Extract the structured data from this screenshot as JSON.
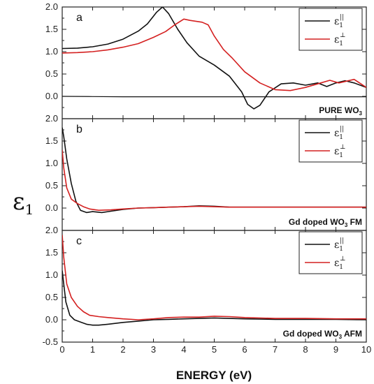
{
  "figure": {
    "ylabel": "ε",
    "ylabel_sub": "1",
    "xlabel": "ENERGY (eV)"
  },
  "chart_data": [
    {
      "type": "line",
      "panel": "a",
      "note": "PURE WO",
      "note_sub": "3",
      "xlim": [
        0,
        10
      ],
      "ylim": [
        -0.5,
        2.0
      ],
      "xticks": [
        "0",
        "1",
        "2",
        "3",
        "4",
        "5",
        "6",
        "7",
        "8",
        "9",
        "10"
      ],
      "yticks": [
        {
          "v": 0.0,
          "label": "0.0"
        },
        {
          "v": 0.5,
          "label": "0.5"
        },
        {
          "v": 1.0,
          "label": "1.0"
        },
        {
          "v": 1.5,
          "label": "1.5"
        },
        {
          "v": 2.0,
          "label": "2.0"
        }
      ],
      "legend_position": "top-right",
      "series": [
        {
          "name": "ε",
          "name_sub": "1",
          "name_sup": "||",
          "color": "#111111",
          "x": [
            0,
            0.5,
            1,
            1.5,
            2,
            2.5,
            2.8,
            3.1,
            3.3,
            3.5,
            3.8,
            4.1,
            4.5,
            5.0,
            5.5,
            5.9,
            6.1,
            6.3,
            6.5,
            6.8,
            7.2,
            7.6,
            8.0,
            8.4,
            8.7,
            9.0,
            9.3,
            9.6,
            10
          ],
          "y": [
            1.07,
            1.08,
            1.11,
            1.17,
            1.28,
            1.46,
            1.62,
            1.88,
            2.0,
            1.85,
            1.5,
            1.2,
            0.9,
            0.7,
            0.45,
            0.1,
            -0.18,
            -0.28,
            -0.2,
            0.1,
            0.28,
            0.3,
            0.25,
            0.3,
            0.22,
            0.3,
            0.35,
            0.3,
            0.2
          ]
        },
        {
          "name": "ε",
          "name_sub": "1",
          "name_sup": "⊥",
          "color": "#d42020",
          "x": [
            0,
            0.5,
            1,
            1.5,
            2,
            2.5,
            3,
            3.4,
            3.7,
            4.0,
            4.2,
            4.6,
            4.8,
            5.0,
            5.3,
            5.6,
            6.0,
            6.5,
            7.0,
            7.5,
            8.0,
            8.5,
            8.8,
            9.1,
            9.6,
            10
          ],
          "y": [
            0.97,
            0.98,
            1.0,
            1.04,
            1.1,
            1.18,
            1.32,
            1.45,
            1.6,
            1.73,
            1.7,
            1.66,
            1.6,
            1.35,
            1.05,
            0.85,
            0.55,
            0.3,
            0.15,
            0.13,
            0.2,
            0.3,
            0.36,
            0.3,
            0.38,
            0.2
          ]
        },
        {
          "name": "",
          "color": "#111111",
          "baseline": true,
          "x": [
            0,
            1,
            2,
            3,
            4,
            5,
            6,
            7,
            8,
            9,
            10
          ],
          "y": [
            0.0,
            -0.005,
            -0.01,
            -0.01,
            -0.01,
            -0.01,
            -0.01,
            -0.01,
            -0.01,
            -0.01,
            -0.01
          ]
        }
      ]
    },
    {
      "type": "line",
      "panel": "b",
      "note": "Gd doped WO",
      "note_sub": "3",
      "note_tail": " FM",
      "xlim": [
        0,
        10
      ],
      "ylim": [
        -0.5,
        2.0
      ],
      "xticks": [
        "0",
        "1",
        "2",
        "3",
        "4",
        "5",
        "6",
        "7",
        "8",
        "9",
        "10"
      ],
      "yticks": [
        {
          "v": 0.0,
          "label": "0.0"
        },
        {
          "v": 0.5,
          "label": "0.5"
        },
        {
          "v": 1.0,
          "label": "1.0"
        },
        {
          "v": 1.5,
          "label": "1.5"
        },
        {
          "v": 2.0,
          "label": "2.0"
        }
      ],
      "legend_position": "top-right",
      "series": [
        {
          "name": "ε",
          "name_sub": "1",
          "name_sup": "||",
          "color": "#111111",
          "x": [
            0,
            0.05,
            0.15,
            0.3,
            0.45,
            0.6,
            0.8,
            1.0,
            1.3,
            1.6,
            2.0,
            2.5,
            3.0,
            3.5,
            4.0,
            4.5,
            5.0,
            5.5,
            6.0,
            7.0,
            8.0,
            9.0,
            10
          ],
          "y": [
            1.8,
            1.6,
            1.1,
            0.55,
            0.15,
            -0.05,
            -0.1,
            -0.08,
            -0.1,
            -0.07,
            -0.03,
            0.0,
            0.01,
            0.02,
            0.03,
            0.05,
            0.04,
            0.02,
            0.02,
            0.02,
            0.02,
            0.02,
            0.02
          ]
        },
        {
          "name": "ε",
          "name_sub": "1",
          "name_sup": "⊥",
          "color": "#d42020",
          "x": [
            0,
            0.05,
            0.15,
            0.3,
            0.5,
            0.7,
            0.9,
            1.2,
            1.6,
            2.0,
            2.5,
            3.0,
            3.5,
            4.0,
            4.5,
            5.0,
            5.5,
            6.0,
            7.0,
            8.0,
            9.0,
            10
          ],
          "y": [
            1.3,
            0.9,
            0.45,
            0.2,
            0.1,
            0.03,
            -0.02,
            -0.05,
            -0.04,
            -0.02,
            0.0,
            0.01,
            0.02,
            0.03,
            0.04,
            0.03,
            0.02,
            0.02,
            0.02,
            0.02,
            0.02,
            0.02
          ]
        }
      ]
    },
    {
      "type": "line",
      "panel": "c",
      "note": "Gd doped WO",
      "note_sub": "3",
      "note_tail": " AFM",
      "xlim": [
        0,
        10
      ],
      "ylim": [
        -0.5,
        2.0
      ],
      "xticks": [
        "0",
        "1",
        "2",
        "3",
        "4",
        "5",
        "6",
        "7",
        "8",
        "9",
        "10"
      ],
      "yticks": [
        {
          "v": -0.5,
          "label": "-0.5"
        },
        {
          "v": 0.0,
          "label": "0.0"
        },
        {
          "v": 0.5,
          "label": "0.5"
        },
        {
          "v": 1.0,
          "label": "1.0"
        },
        {
          "v": 1.5,
          "label": "1.5"
        },
        {
          "v": 2.0,
          "label": "2.0"
        }
      ],
      "legend_position": "top-right",
      "series": [
        {
          "name": "ε",
          "name_sub": "1",
          "name_sup": "||",
          "color": "#111111",
          "x": [
            0,
            0.05,
            0.12,
            0.25,
            0.4,
            0.6,
            0.8,
            1.0,
            1.2,
            1.5,
            2.0,
            2.5,
            3.0,
            3.5,
            4.0,
            4.5,
            5.0,
            5.5,
            6.0,
            7.0,
            8.0,
            9.0,
            10
          ],
          "y": [
            1.1,
            0.8,
            0.4,
            0.1,
            0.0,
            -0.05,
            -0.1,
            -0.12,
            -0.12,
            -0.1,
            -0.06,
            -0.03,
            0.0,
            0.01,
            0.02,
            0.03,
            0.04,
            0.03,
            0.02,
            0.01,
            0.01,
            0.01,
            0.0
          ]
        },
        {
          "name": "ε",
          "name_sub": "1",
          "name_sup": "⊥",
          "color": "#d42020",
          "x": [
            0,
            0.05,
            0.15,
            0.3,
            0.5,
            0.7,
            0.9,
            1.2,
            1.5,
            2.0,
            2.5,
            3.0,
            3.5,
            4.0,
            4.5,
            5.0,
            5.5,
            6.0,
            7.0,
            8.0,
            9.0,
            10
          ],
          "y": [
            1.9,
            1.4,
            0.8,
            0.5,
            0.3,
            0.18,
            0.1,
            0.07,
            0.05,
            0.02,
            0.0,
            0.02,
            0.05,
            0.06,
            0.06,
            0.08,
            0.07,
            0.05,
            0.03,
            0.03,
            0.02,
            0.02
          ]
        }
      ]
    }
  ]
}
